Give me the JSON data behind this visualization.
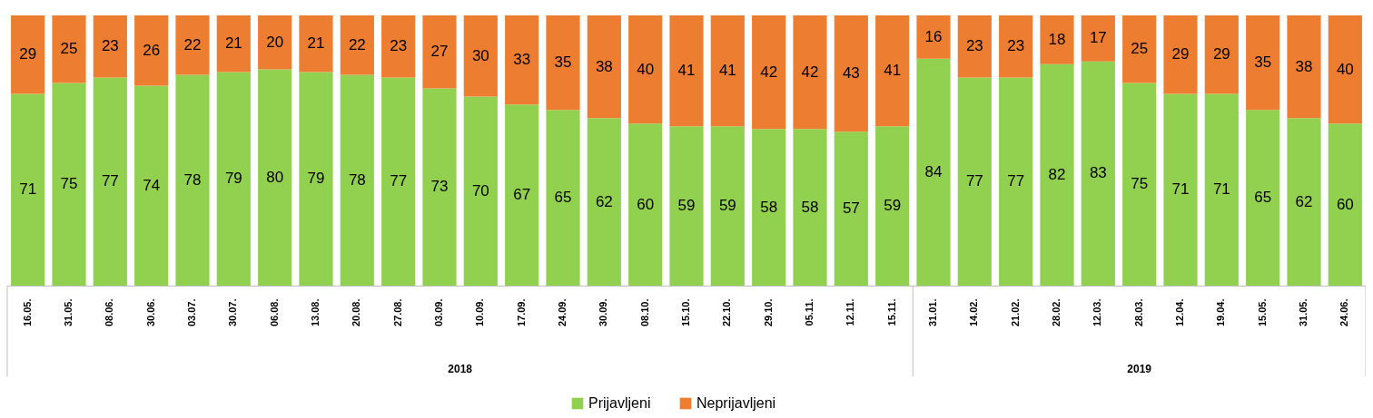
{
  "chart_data": {
    "type": "bar",
    "stacked": true,
    "data_labels": true,
    "legend": "bottom",
    "categories": [
      "16.05.",
      "31.05.",
      "08.06.",
      "30.06.",
      "03.07.",
      "30.07.",
      "06.08.",
      "13.08.",
      "20.08.",
      "27.08.",
      "03.09.",
      "10.09.",
      "17.09.",
      "24.09.",
      "30.09.",
      "08.10.",
      "15.10.",
      "22.10.",
      "29.10.",
      "05.11.",
      "12.11.",
      "15.11.",
      "31.01.",
      "14.02.",
      "21.02.",
      "28.02.",
      "12.03.",
      "28.03.",
      "12.04.",
      "19.04.",
      "15.05.",
      "31.05.",
      "24.06."
    ],
    "series": [
      {
        "name": "Prijavljeni",
        "color": "#92d050",
        "values": [
          71,
          75,
          77,
          74,
          78,
          79,
          80,
          79,
          78,
          77,
          73,
          70,
          67,
          65,
          62,
          60,
          59,
          59,
          58,
          58,
          57,
          59,
          84,
          77,
          77,
          82,
          83,
          75,
          71,
          71,
          65,
          62,
          60
        ]
      },
      {
        "name": "Neprijavljeni",
        "color": "#ed7d31",
        "values": [
          29,
          25,
          23,
          26,
          22,
          21,
          20,
          21,
          22,
          23,
          27,
          30,
          33,
          35,
          38,
          40,
          41,
          41,
          42,
          42,
          43,
          41,
          16,
          23,
          23,
          18,
          17,
          25,
          29,
          29,
          35,
          38,
          40
        ]
      }
    ],
    "annotations": [
      "2018",
      "2019"
    ]
  }
}
